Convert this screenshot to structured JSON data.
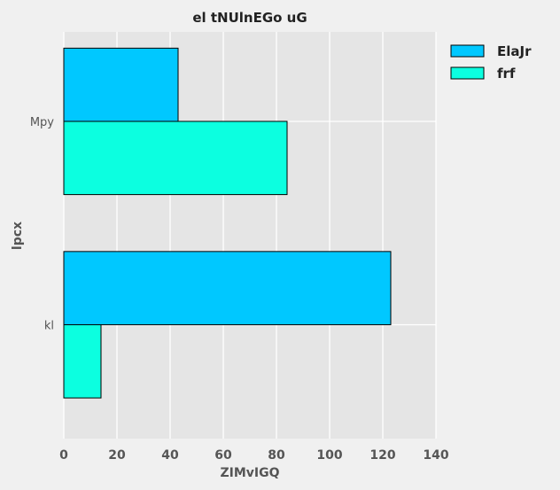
{
  "chart_data": {
    "type": "bar",
    "orientation": "horizontal",
    "title": "el tNUlnEGo uG",
    "xlabel": "ZIMvIGQ",
    "ylabel": "lpcx",
    "categories": [
      "Mpy",
      "kl"
    ],
    "series": [
      {
        "name": "ElaJr",
        "values": [
          43,
          123
        ],
        "color": "#00c8ff"
      },
      {
        "name": "frf",
        "values": [
          84,
          14
        ],
        "color": "#0cffe0"
      }
    ],
    "xlim": [
      0,
      140
    ],
    "xticks": [
      0,
      20,
      40,
      60,
      80,
      100,
      120,
      140
    ],
    "grid": true,
    "legend_position": "outside-top-right",
    "colors": {
      "plot_background": "#e5e5e5",
      "figure_background": "#f0f0f0",
      "grid": "#ffffff",
      "bar_edge": "#000000"
    }
  }
}
